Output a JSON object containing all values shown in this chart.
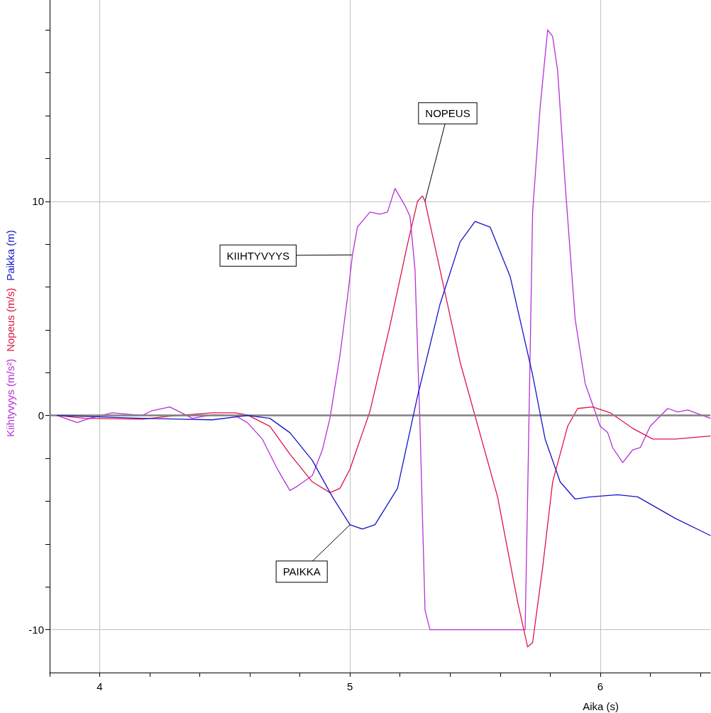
{
  "chart_data": {
    "type": "line",
    "xlabel": "Aika (s)",
    "xlim": [
      3.8,
      6.44
    ],
    "xticks": [
      {
        "value": 3.8,
        "label": null
      },
      4,
      {
        "value": 4.2,
        "label": null
      },
      {
        "value": 4.4,
        "label": null
      },
      {
        "value": 4.6,
        "label": null
      },
      {
        "value": 4.8,
        "label": null
      },
      5,
      {
        "value": 5.2,
        "label": null
      },
      {
        "value": 5.4,
        "label": null
      },
      {
        "value": 5.6,
        "label": null
      },
      {
        "value": 5.8,
        "label": null
      },
      6,
      {
        "value": 6.2,
        "label": null
      },
      {
        "value": 6.4,
        "label": null
      }
    ],
    "ylim": [
      -12,
      19.4
    ],
    "yticks": [
      -10,
      {
        "value": -8,
        "label": null
      },
      {
        "value": -6,
        "label": null
      },
      {
        "value": -4,
        "label": null
      },
      {
        "value": -2,
        "label": null
      },
      0,
      {
        "value": 2,
        "label": null
      },
      {
        "value": 4,
        "label": null
      },
      {
        "value": 6,
        "label": null
      },
      {
        "value": 8,
        "label": null
      },
      10,
      {
        "value": 12,
        "label": null
      },
      {
        "value": 14,
        "label": null
      },
      {
        "value": 16,
        "label": null
      },
      {
        "value": 18,
        "label": null
      }
    ],
    "grid": true,
    "legend": false,
    "marker": "none",
    "line_style": "solid",
    "ref_lines": [
      {
        "axis": "y",
        "value": 0,
        "color": "#808080"
      }
    ],
    "annotations": [
      {
        "text": "NOPEUS",
        "x": 5.3,
        "y": 10.0
      },
      {
        "text": "KIIHTYVYYS",
        "x": 5.01,
        "y": 7.5
      },
      {
        "text": "PAIKKA",
        "x": 5.0,
        "y": -5.1
      }
    ],
    "series": [
      {
        "name": "Kiihtyvyys (m/s²)",
        "color": "#b530d8",
        "x": [
          3.83,
          3.91,
          3.96,
          4.05,
          4.17,
          4.21,
          4.28,
          4.37,
          4.45,
          4.54,
          4.59,
          4.65,
          4.71,
          4.76,
          4.79,
          4.85,
          4.89,
          4.92,
          4.96,
          4.99,
          5.01,
          5.03,
          5.08,
          5.12,
          5.15,
          5.18,
          5.22,
          5.24,
          5.26,
          5.28,
          5.3,
          5.32,
          5.35,
          5.59,
          5.7,
          5.71,
          5.73,
          5.76,
          5.79,
          5.81,
          5.83,
          5.86,
          5.9,
          5.94,
          6.0,
          6.03,
          6.05,
          6.09,
          6.13,
          6.16,
          6.2,
          6.27,
          6.31,
          6.35,
          6.44
        ],
        "values": [
          0,
          -0.33,
          -0.13,
          0.13,
          0,
          0.23,
          0.4,
          -0.13,
          0.03,
          0,
          -0.33,
          -1.1,
          -2.5,
          -3.5,
          -3.3,
          -2.8,
          -1.6,
          -0.13,
          2.8,
          5.5,
          7.5,
          8.8,
          9.5,
          9.4,
          9.5,
          10.6,
          9.8,
          9.3,
          6.8,
          -0.5,
          -9.1,
          -10,
          -10,
          -10,
          -10,
          -3.8,
          9.5,
          14.4,
          18,
          17.7,
          16.1,
          10.8,
          4.5,
          1.5,
          -0.5,
          -0.8,
          -1.5,
          -2.2,
          -1.6,
          -1.5,
          -0.5,
          0.33,
          0.17,
          0.26,
          -0.13
        ]
      },
      {
        "name": "Nopeus (m/s)",
        "color": "#dc1448",
        "x": [
          3.83,
          3.94,
          4.17,
          4.28,
          4.45,
          4.54,
          4.59,
          4.68,
          4.76,
          4.85,
          4.92,
          4.96,
          5.0,
          5.08,
          5.16,
          5.23,
          5.27,
          5.29,
          5.3,
          5.36,
          5.44,
          5.59,
          5.67,
          5.71,
          5.73,
          5.77,
          5.81,
          5.87,
          5.91,
          5.97,
          6.04,
          6.13,
          6.21,
          6.3,
          6.44
        ],
        "values": [
          0,
          -0.13,
          -0.17,
          -0.03,
          0.13,
          0.13,
          0.03,
          -0.5,
          -1.8,
          -3.1,
          -3.6,
          -3.4,
          -2.5,
          0.2,
          4.2,
          8.0,
          10.0,
          10.25,
          10.0,
          6.8,
          2.5,
          -3.8,
          -8.7,
          -10.8,
          -10.6,
          -7.1,
          -3.1,
          -0.5,
          0.33,
          0.4,
          0.13,
          -0.6,
          -1.1,
          -1.1,
          -0.96
        ]
      },
      {
        "name": "Paikka (m)",
        "color": "#1414c8",
        "x": [
          3.83,
          4.17,
          4.45,
          4.59,
          4.68,
          4.76,
          4.85,
          4.93,
          5.0,
          5.05,
          5.1,
          5.19,
          5.27,
          5.36,
          5.44,
          5.5,
          5.56,
          5.64,
          5.73,
          5.78,
          5.84,
          5.9,
          5.96,
          6.07,
          6.15,
          6.3,
          6.44
        ],
        "values": [
          0,
          -0.13,
          -0.2,
          0,
          -0.13,
          -0.8,
          -2.1,
          -3.8,
          -5.1,
          -5.3,
          -5.1,
          -3.4,
          0.9,
          5.2,
          8.1,
          9.06,
          8.8,
          6.5,
          1.9,
          -1.1,
          -3.1,
          -3.9,
          -3.8,
          -3.7,
          -3.8,
          -4.8,
          -5.6
        ]
      }
    ]
  }
}
